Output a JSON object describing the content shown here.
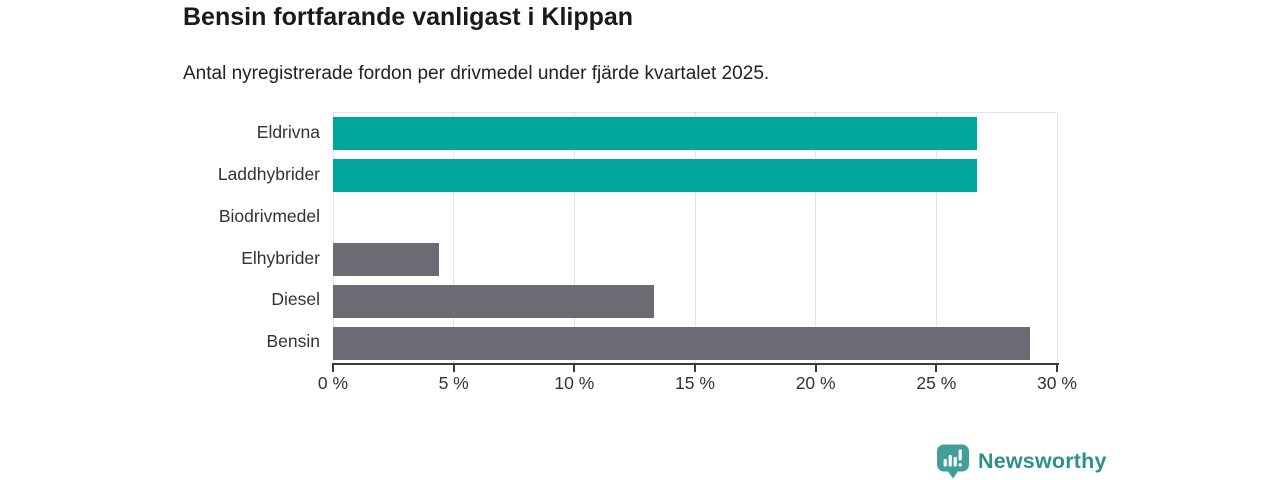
{
  "header": {
    "title": "Bensin fortfarande vanligast i Klippan",
    "subtitle": "Antal nyregistrerade fordon per drivmedel under fjärde kvartalet 2025."
  },
  "chart_data": {
    "type": "bar",
    "orientation": "horizontal",
    "title": "Bensin fortfarande vanligast i Klippan",
    "subtitle": "Antal nyregistrerade fordon per drivmedel under fjärde kvartalet 2025.",
    "categories": [
      "Eldrivna",
      "Laddhybrider",
      "Biodrivmedel",
      "Elhybrider",
      "Diesel",
      "Bensin"
    ],
    "values": [
      26.7,
      26.7,
      0,
      4.4,
      13.3,
      28.9
    ],
    "unit": "%",
    "xlim": [
      0,
      30
    ],
    "x_tick_values": [
      0,
      5,
      10,
      15,
      20,
      25,
      30
    ],
    "x_tick_labels": [
      "0 %",
      "5 %",
      "10 %",
      "15 %",
      "20 %",
      "25 %",
      "30 %"
    ],
    "grid": "vertical",
    "legend": "none",
    "colors": {
      "highlight": "#00a699",
      "default": "#6c6b74"
    },
    "bar_colors": [
      "#00a699",
      "#00a699",
      "#6c6b74",
      "#6c6b74",
      "#6c6b74",
      "#6c6b74"
    ]
  },
  "footer": {
    "brand": "Newsworthy",
    "logo_icon": "bar-chart-speech-bubble-icon",
    "brand_color": "#2e908c",
    "icon_color": "#40a099"
  }
}
